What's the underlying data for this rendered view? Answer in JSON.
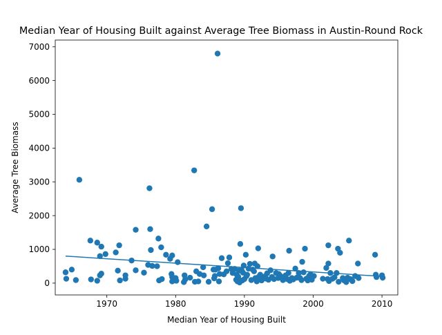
{
  "chart_data": {
    "type": "scatter",
    "title": "Median Year of Housing Built against Average Tree Biomass in Austin-Round Rock",
    "xlabel": "Median Year of Housing Built",
    "ylabel": "Average Tree Biomass",
    "xlim": [
      1962.5,
      2012.3
    ],
    "ylim": [
      -350,
      7200
    ],
    "xticks": [
      1970,
      1980,
      1990,
      2000,
      2010
    ],
    "yticks": [
      0,
      1000,
      2000,
      3000,
      4000,
      5000,
      6000,
      7000
    ],
    "grid": false,
    "legend": "none",
    "point_color": "#1f77b4",
    "line_color": "#1f77b4",
    "trendline": {
      "x": [
        1964,
        2010
      ],
      "y": [
        800,
        200
      ]
    },
    "points": [
      [
        1964.0,
        320
      ],
      [
        1964.1,
        130
      ],
      [
        1964.9,
        400
      ],
      [
        1965.5,
        90
      ],
      [
        1966.0,
        3060
      ],
      [
        1967.6,
        1260
      ],
      [
        1967.7,
        110
      ],
      [
        1968.6,
        1200
      ],
      [
        1968.6,
        70
      ],
      [
        1969.0,
        800
      ],
      [
        1969.0,
        230
      ],
      [
        1969.2,
        1080
      ],
      [
        1969.2,
        280
      ],
      [
        1969.8,
        860
      ],
      [
        1971.3,
        910
      ],
      [
        1971.6,
        370
      ],
      [
        1971.8,
        1120
      ],
      [
        1971.9,
        80
      ],
      [
        1972.7,
        230
      ],
      [
        1972.7,
        130
      ],
      [
        1973.6,
        670
      ],
      [
        1974.2,
        1580
      ],
      [
        1974.2,
        380
      ],
      [
        1975.4,
        310
      ],
      [
        1976.0,
        540
      ],
      [
        1976.2,
        2810
      ],
      [
        1976.3,
        1600
      ],
      [
        1976.4,
        980
      ],
      [
        1976.6,
        510
      ],
      [
        1977.3,
        500
      ],
      [
        1977.5,
        1320
      ],
      [
        1977.6,
        80
      ],
      [
        1977.9,
        1060
      ],
      [
        1978.0,
        120
      ],
      [
        1978.6,
        840
      ],
      [
        1979.2,
        720
      ],
      [
        1979.4,
        270
      ],
      [
        1979.5,
        820
      ],
      [
        1979.5,
        180
      ],
      [
        1979.5,
        50
      ],
      [
        1980.0,
        150
      ],
      [
        1980.1,
        70
      ],
      [
        1980.3,
        620
      ],
      [
        1981.2,
        30
      ],
      [
        1981.3,
        230
      ],
      [
        1981.4,
        110
      ],
      [
        1982.1,
        160
      ],
      [
        1982.7,
        3340
      ],
      [
        1982.8,
        40
      ],
      [
        1983.0,
        350
      ],
      [
        1983.3,
        50
      ],
      [
        1983.5,
        270
      ],
      [
        1984.0,
        470
      ],
      [
        1984.1,
        230
      ],
      [
        1984.5,
        1680
      ],
      [
        1984.8,
        40
      ],
      [
        1985.3,
        2190
      ],
      [
        1985.5,
        400
      ],
      [
        1985.6,
        140
      ],
      [
        1985.7,
        210
      ],
      [
        1985.8,
        400
      ],
      [
        1986.1,
        6800
      ],
      [
        1986.2,
        440
      ],
      [
        1986.3,
        50
      ],
      [
        1986.4,
        270
      ],
      [
        1986.7,
        740
      ],
      [
        1987.0,
        260
      ],
      [
        1987.4,
        350
      ],
      [
        1987.6,
        590
      ],
      [
        1987.8,
        760
      ],
      [
        1988.1,
        420
      ],
      [
        1988.3,
        300
      ],
      [
        1988.6,
        420
      ],
      [
        1988.8,
        100
      ],
      [
        1988.9,
        250
      ],
      [
        1989.0,
        50
      ],
      [
        1989.1,
        190
      ],
      [
        1989.2,
        370
      ],
      [
        1989.3,
        20
      ],
      [
        1989.4,
        1160
      ],
      [
        1989.5,
        2220
      ],
      [
        1989.6,
        380
      ],
      [
        1989.7,
        80
      ],
      [
        1989.8,
        310
      ],
      [
        1989.9,
        520
      ],
      [
        1990.0,
        120
      ],
      [
        1990.2,
        840
      ],
      [
        1990.3,
        210
      ],
      [
        1990.4,
        250
      ],
      [
        1990.6,
        430
      ],
      [
        1990.8,
        570
      ],
      [
        1991.0,
        90
      ],
      [
        1991.2,
        400
      ],
      [
        1991.4,
        350
      ],
      [
        1991.5,
        580
      ],
      [
        1991.6,
        150
      ],
      [
        1991.8,
        50
      ],
      [
        1991.9,
        500
      ],
      [
        1992.0,
        1030
      ],
      [
        1992.1,
        190
      ],
      [
        1992.3,
        250
      ],
      [
        1992.5,
        80
      ],
      [
        1992.7,
        130
      ],
      [
        1993.0,
        200
      ],
      [
        1993.2,
        130
      ],
      [
        1993.3,
        290
      ],
      [
        1993.5,
        100
      ],
      [
        1993.8,
        380
      ],
      [
        1994.0,
        180
      ],
      [
        1994.1,
        790
      ],
      [
        1994.3,
        120
      ],
      [
        1994.6,
        300
      ],
      [
        1994.9,
        150
      ],
      [
        1995.0,
        270
      ],
      [
        1995.2,
        220
      ],
      [
        1995.4,
        170
      ],
      [
        1995.6,
        90
      ],
      [
        1996.0,
        230
      ],
      [
        1996.2,
        120
      ],
      [
        1996.4,
        300
      ],
      [
        1996.5,
        960
      ],
      [
        1996.6,
        70
      ],
      [
        1996.9,
        150
      ],
      [
        1997.1,
        110
      ],
      [
        1997.4,
        430
      ],
      [
        1997.6,
        160
      ],
      [
        1997.9,
        300
      ],
      [
        1998.1,
        150
      ],
      [
        1998.3,
        90
      ],
      [
        1998.4,
        630
      ],
      [
        1998.6,
        320
      ],
      [
        1998.8,
        1020
      ],
      [
        1999.0,
        130
      ],
      [
        1999.2,
        80
      ],
      [
        1999.4,
        210
      ],
      [
        1999.6,
        260
      ],
      [
        1999.8,
        100
      ],
      [
        2000.1,
        210
      ],
      [
        2001.4,
        130
      ],
      [
        2001.9,
        450
      ],
      [
        2002.1,
        120
      ],
      [
        2002.2,
        580
      ],
      [
        2002.2,
        1120
      ],
      [
        2002.3,
        60
      ],
      [
        2002.5,
        300
      ],
      [
        2002.8,
        130
      ],
      [
        2003.1,
        170
      ],
      [
        2003.4,
        300
      ],
      [
        2003.6,
        1020
      ],
      [
        2003.7,
        40
      ],
      [
        2003.9,
        900
      ],
      [
        2004.3,
        150
      ],
      [
        2004.5,
        80
      ],
      [
        2004.8,
        30
      ],
      [
        2005.0,
        160
      ],
      [
        2005.2,
        1260
      ],
      [
        2005.4,
        120
      ],
      [
        2005.7,
        60
      ],
      [
        2006.1,
        210
      ],
      [
        2006.5,
        580
      ],
      [
        2006.6,
        150
      ],
      [
        2009.0,
        840
      ],
      [
        2009.1,
        250
      ],
      [
        2009.2,
        180
      ],
      [
        2010.0,
        230
      ],
      [
        2010.1,
        160
      ]
    ]
  }
}
